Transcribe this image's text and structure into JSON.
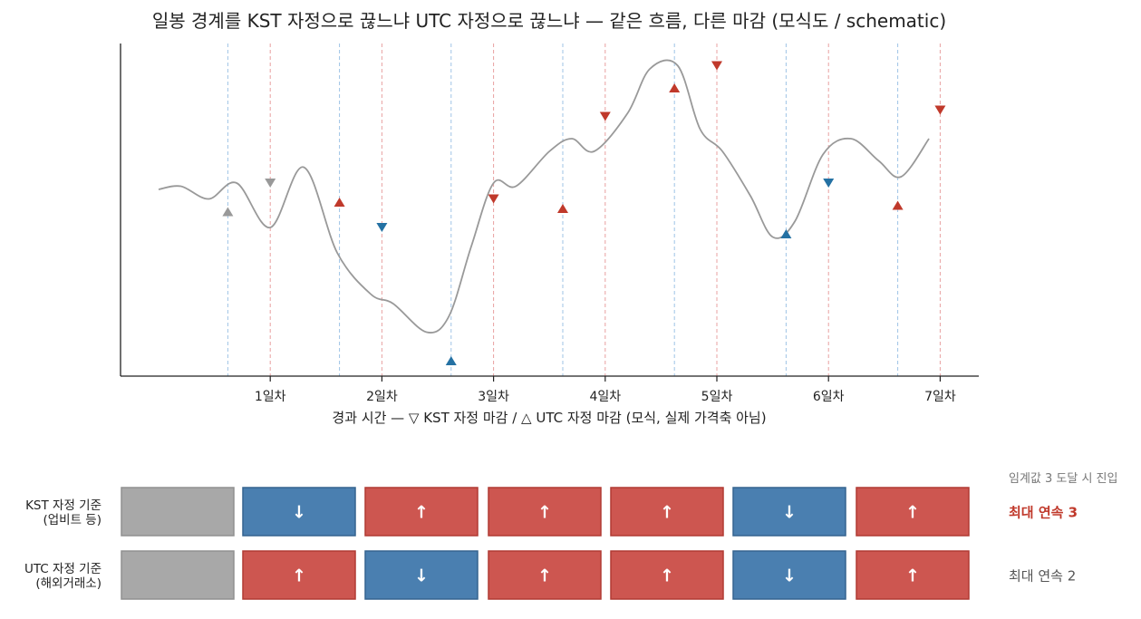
{
  "chart_data": {
    "type": "line",
    "title": "일봉 경계를 KST 자정으로 끊느냐 UTC 자정으로 끊느냐 — 같은 흐름, 다른 마감 (모식도 / schematic)",
    "xlabel": "경과 시간 — ▽ KST 자정 마감 / △ UTC 자정 마감 (모식, 실제 가격축 아님)",
    "ylabel": "",
    "x_ticks": [
      "1일차",
      "2일차",
      "3일차",
      "4일차",
      "5일차",
      "6일차",
      "7일차"
    ],
    "xlim": [
      0,
      7.7
    ],
    "ylim": [
      0,
      100
    ],
    "grid": false,
    "price_path": {
      "x": [
        0.0,
        0.2,
        0.45,
        0.7,
        1.0,
        1.3,
        1.6,
        1.9,
        2.1,
        2.4,
        2.6,
        2.8,
        3.0,
        3.2,
        3.5,
        3.7,
        3.9,
        4.2,
        4.4,
        4.65,
        4.85,
        5.05,
        5.3,
        5.5,
        5.7,
        5.95,
        6.2,
        6.45,
        6.65,
        6.9
      ],
      "y": [
        56,
        57,
        53,
        58,
        44,
        63,
        36,
        23,
        20,
        11,
        16,
        38,
        58,
        57,
        68,
        72,
        68,
        80,
        94,
        95,
        75,
        68,
        54,
        41,
        46,
        67,
        72,
        65,
        60,
        72
      ]
    },
    "series": [
      {
        "name": "KST 자정 마감",
        "marker": "triangle-down",
        "x": [
          1,
          2,
          3,
          4,
          5,
          6,
          7
        ],
        "y": [
          58,
          44,
          53,
          79,
          95,
          58,
          81
        ],
        "direction": [
          "neutral",
          "down",
          "up",
          "up",
          "up",
          "down",
          "up"
        ]
      },
      {
        "name": "UTC 자정 마감",
        "marker": "triangle-up",
        "x": [
          0.62,
          1.62,
          2.62,
          3.62,
          4.62,
          5.62,
          6.62
        ],
        "y": [
          49,
          52,
          2,
          50,
          88,
          42,
          51
        ],
        "direction": [
          "neutral",
          "up",
          "down",
          "up",
          "up",
          "down",
          "up"
        ]
      }
    ],
    "colors": {
      "up": "#c0392b",
      "down": "#2471a3",
      "neutral": "#999999",
      "price_line": "#999999",
      "kst_line": "#e8a0a0",
      "utc_line": "#9ec3e6"
    }
  },
  "bottom_panel": {
    "note": "임계값 3 도달 시 진입",
    "rows": [
      {
        "label_line1": "KST 자정 기준",
        "label_line2": "(업비트 등)",
        "cells": [
          "",
          "↓",
          "↑",
          "↑",
          "↑",
          "↓",
          "↑"
        ],
        "states": [
          "neutral",
          "down",
          "up",
          "up",
          "up",
          "down",
          "up"
        ],
        "result": "최대 연속 3",
        "result_highlight": true
      },
      {
        "label_line1": "UTC 자정 기준",
        "label_line2": "(해외거래소)",
        "cells": [
          "",
          "↑",
          "↓",
          "↑",
          "↑",
          "↓",
          "↑"
        ],
        "states": [
          "neutral",
          "up",
          "down",
          "up",
          "up",
          "down",
          "up"
        ],
        "result": "최대 연속 2",
        "result_highlight": false
      }
    ],
    "colors": {
      "up_fill": "#cd5650",
      "up_stroke": "#b03a33",
      "down_fill": "#4a7fb0",
      "down_stroke": "#35648f",
      "neutral_fill": "#a8a8a8",
      "neutral_stroke": "#909090",
      "highlight_text": "#c0392b",
      "muted_text": "#555555",
      "note_text": "#777777"
    }
  }
}
